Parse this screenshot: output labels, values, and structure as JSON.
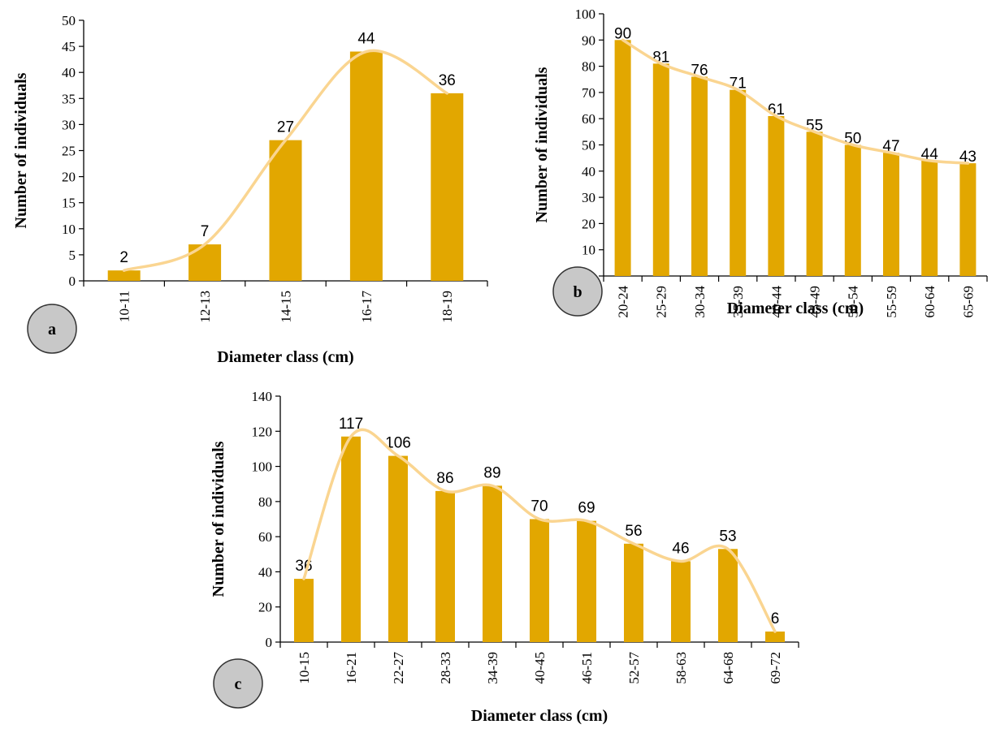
{
  "colors": {
    "bar": "#E2A700",
    "curve": "#FAD591",
    "axis": "#000000",
    "badge_fill": "#C8C8C8",
    "badge_stroke": "#333333"
  },
  "chart_data": [
    {
      "panel": "a",
      "type": "bar",
      "categories": [
        "10-11",
        "12-13",
        "14-15",
        "16-17",
        "18-19"
      ],
      "values": [
        2,
        7,
        27,
        44,
        36
      ],
      "xlabel": "Diameter class (cm)",
      "ylabel": "Number of individuals",
      "ylim": [
        0,
        50
      ],
      "yticks": [
        0,
        5,
        10,
        15,
        20,
        25,
        30,
        35,
        40,
        45,
        50
      ],
      "trend_line": "smoothed",
      "grid": false
    },
    {
      "panel": "b",
      "type": "bar",
      "categories": [
        "20-24",
        "25-29",
        "30-34",
        "35-39",
        "40-44",
        "45-49",
        "50-54",
        "55-59",
        "60-64",
        "65-69"
      ],
      "values": [
        90,
        81,
        76,
        71,
        61,
        55,
        50,
        47,
        44,
        43
      ],
      "xlabel": "Diameter class (cm)",
      "ylabel": "Number of individuals",
      "ylim": [
        0,
        100
      ],
      "yticks": [
        0,
        10,
        20,
        30,
        40,
        50,
        60,
        70,
        80,
        90,
        100
      ],
      "trend_line": "smoothed",
      "grid": false
    },
    {
      "panel": "c",
      "type": "bar",
      "categories": [
        "10-15",
        "16-21",
        "22-27",
        "28-33",
        "34-39",
        "40-45",
        "46-51",
        "52-57",
        "58-63",
        "64-68",
        "69-72"
      ],
      "values": [
        36,
        117,
        106,
        86,
        89,
        70,
        69,
        56,
        46,
        53,
        6
      ],
      "xlabel": "Diameter class (cm)",
      "ylabel": "Number of individuals",
      "ylim": [
        0,
        140
      ],
      "yticks": [
        0,
        20,
        40,
        60,
        80,
        100,
        120,
        140
      ],
      "trend_line": "smoothed",
      "grid": false
    }
  ]
}
